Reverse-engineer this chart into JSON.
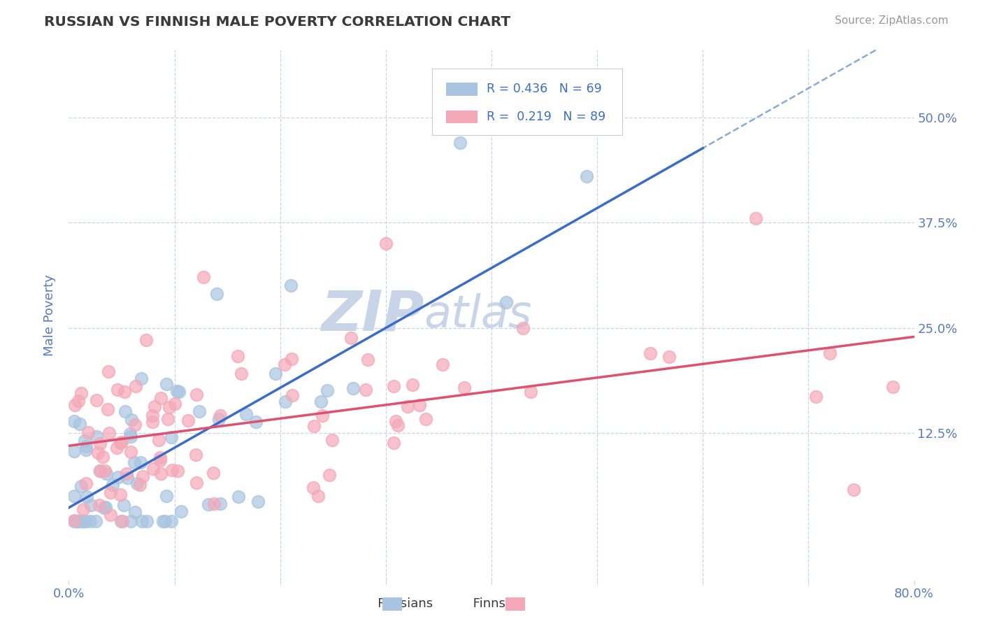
{
  "title": "RUSSIAN VS FINNISH MALE POVERTY CORRELATION CHART",
  "source": "Source: ZipAtlas.com",
  "ylabel": "Male Poverty",
  "xlim": [
    0.0,
    0.8
  ],
  "ylim": [
    -0.05,
    0.58
  ],
  "ytick_positions": [
    0.125,
    0.25,
    0.375,
    0.5
  ],
  "ytick_labels": [
    "12.5%",
    "25.0%",
    "37.5%",
    "50.0%"
  ],
  "russian_R": 0.436,
  "russian_N": 69,
  "finnish_R": 0.219,
  "finnish_N": 89,
  "russian_color": "#a8c4e0",
  "finnish_color": "#f4a8b8",
  "russian_line_color": "#3b6cc7",
  "finnish_line_color": "#e05070",
  "dash_line_color": "#8aaad4",
  "background_color": "#ffffff",
  "watermark": "ZIPatlas",
  "title_color": "#3a3a3a",
  "axis_color": "#5a7abf",
  "legend_R_color": "#3b6cc7",
  "legend_label_color": "#3a3a3a",
  "grid_color": "#c8d4e8",
  "watermark_color": "#c8d4e8",
  "russian_seed": 101,
  "finnish_seed": 202
}
